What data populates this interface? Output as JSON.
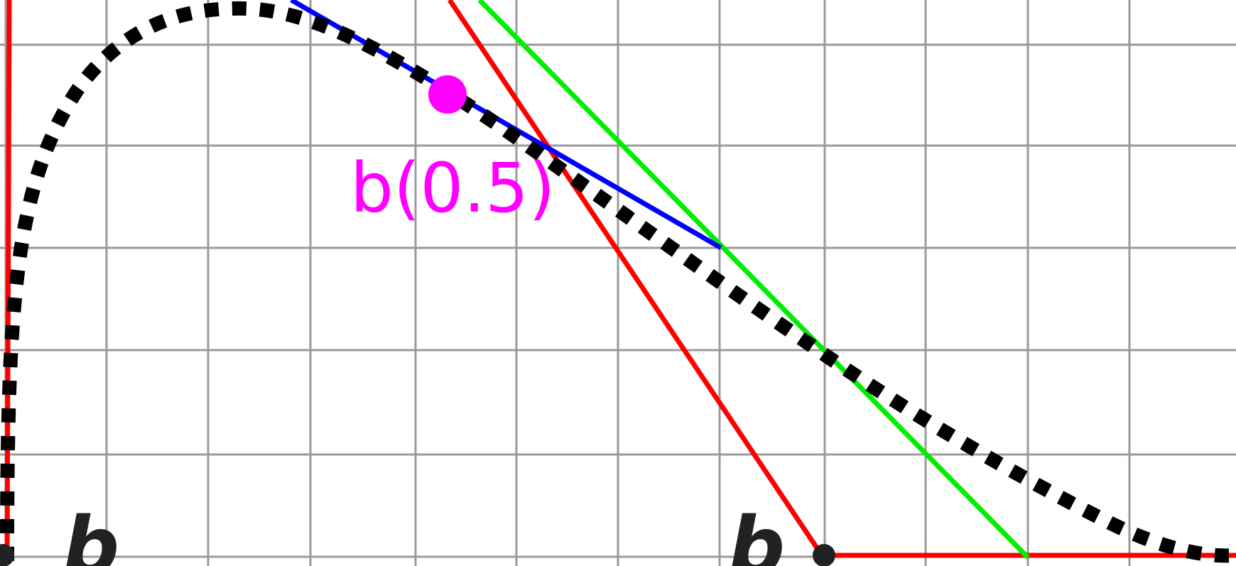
{
  "diagram": {
    "point_label": "b(0.5)",
    "control_labels": [
      "b",
      "b"
    ],
    "colors": {
      "grid": "#9a9a9a",
      "curve": "#000000",
      "control_polygon": "#ff0000",
      "second_level": "#00ee00",
      "third_level": "#0000ff",
      "point": "#ff00ff"
    }
  }
}
